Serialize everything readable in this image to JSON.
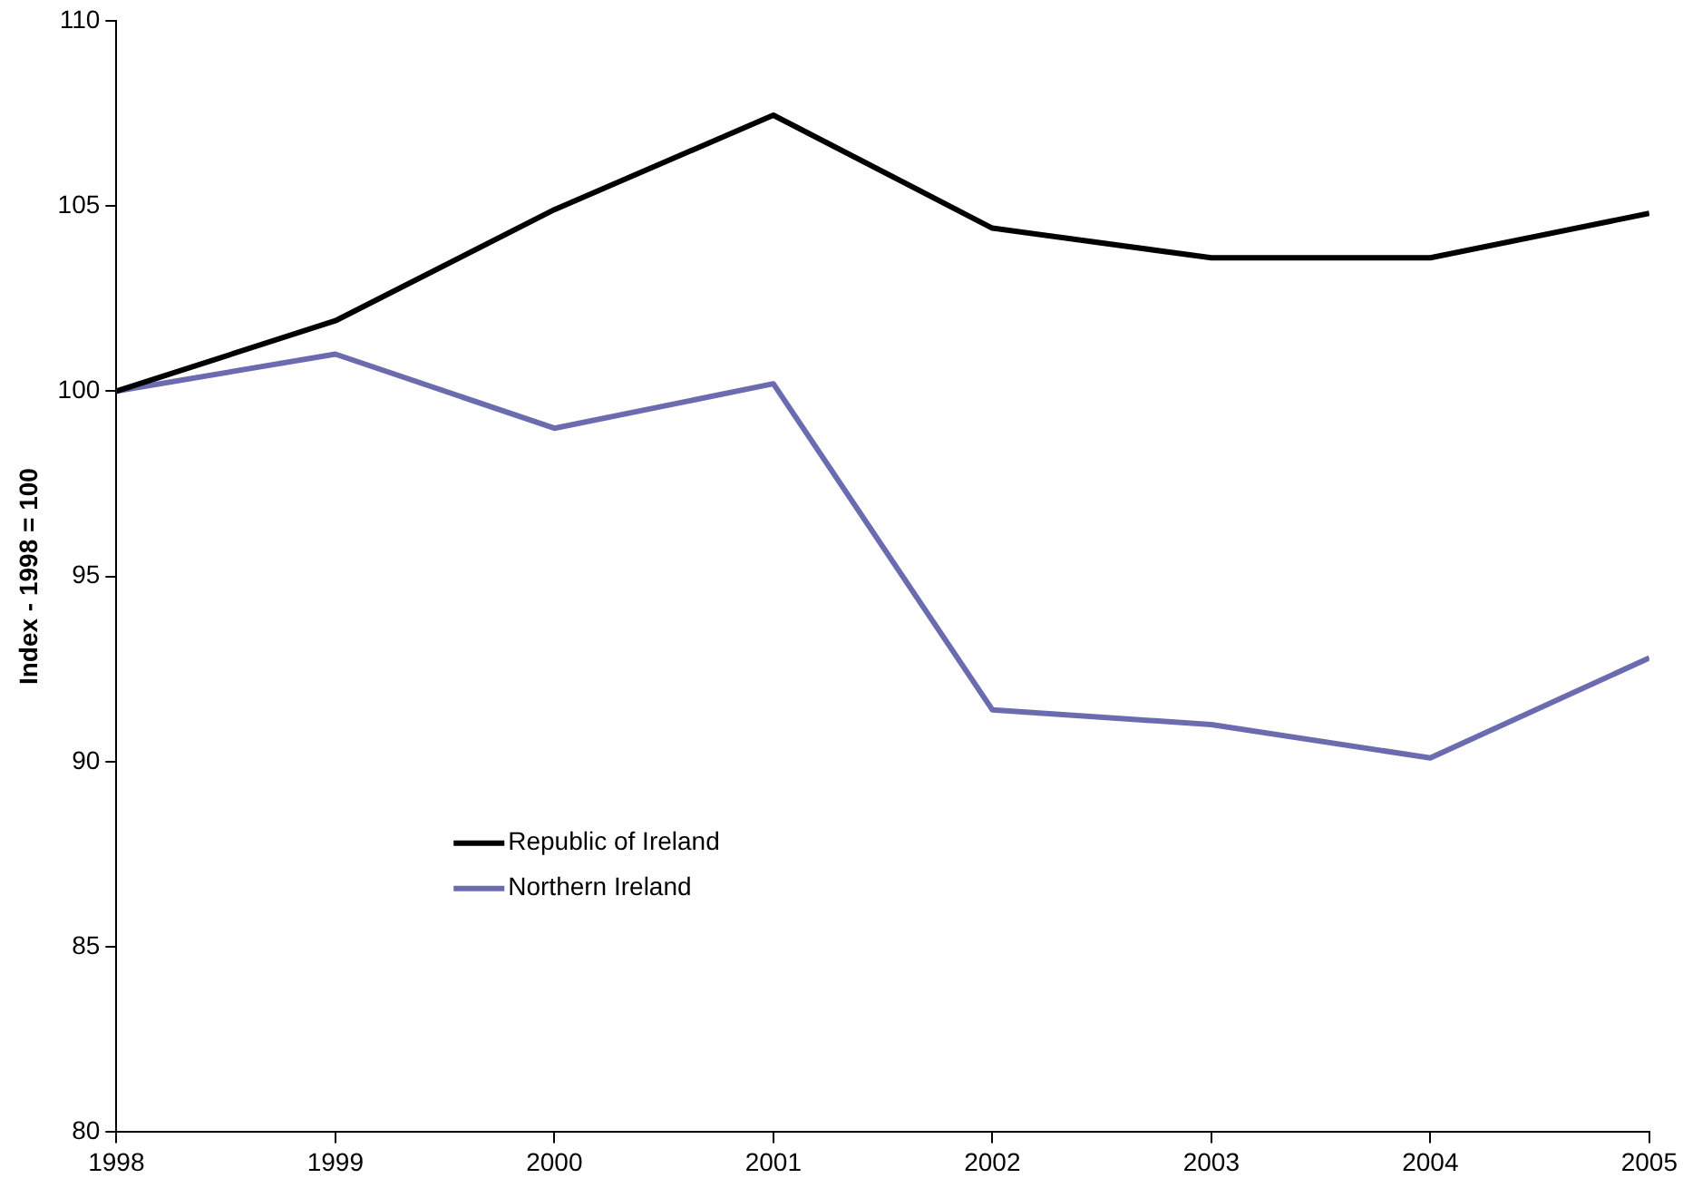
{
  "chart_data": {
    "type": "line",
    "ylabel": "Index - 1998 = 100",
    "x": [
      1998,
      1999,
      2000,
      2001,
      2002,
      2003,
      2004,
      2005
    ],
    "xlim": [
      1998,
      2005
    ],
    "xticks": [
      1998,
      1999,
      2000,
      2001,
      2002,
      2003,
      2004,
      2005
    ],
    "ylim": [
      80,
      110
    ],
    "yticks": [
      80,
      85,
      90,
      95,
      100,
      105,
      110
    ],
    "grid": false,
    "legend": "bottom left",
    "marker": "none",
    "line_style": "solid",
    "series": [
      {
        "name": "Republic of Ireland",
        "color": "#000000",
        "values": [
          100,
          101.9,
          104.9,
          107.45,
          104.4,
          103.6,
          103.6,
          104.8
        ]
      },
      {
        "name": "Northern Ireland",
        "color": "#6b6bb0",
        "values": [
          100,
          101.0,
          99.0,
          100.2,
          91.4,
          91.0,
          90.1,
          92.8
        ]
      }
    ]
  }
}
